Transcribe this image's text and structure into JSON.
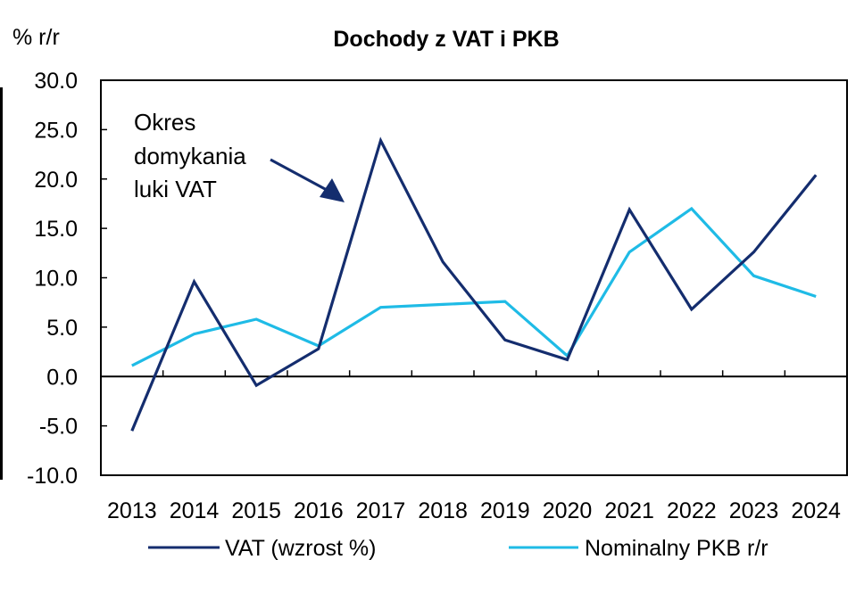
{
  "chart_data": {
    "type": "line",
    "title": "Dochody z VAT i  PKB",
    "ylabel": "% r/r",
    "xlabel": "",
    "ylim": [
      -10,
      30
    ],
    "ytick_step": 5,
    "yticks": [
      "30.0",
      "25.0",
      "20.0",
      "15.0",
      "10.0",
      "5.0",
      "0.0",
      "-5.0",
      "-10.0"
    ],
    "categories": [
      "2013",
      "2014",
      "2015",
      "2016",
      "2017",
      "2018",
      "2019",
      "2020",
      "2021",
      "2022",
      "2023",
      "2024"
    ],
    "series": [
      {
        "name": "VAT (wzrost %)",
        "color": "#142d6e",
        "values": [
          -5.5,
          9.6,
          -0.9,
          2.8,
          23.9,
          11.6,
          3.7,
          1.7,
          16.9,
          6.8,
          12.6,
          20.4
        ]
      },
      {
        "name": "Nominalny PKB r/r",
        "color": "#1fbbe6",
        "values": [
          1.1,
          4.3,
          5.8,
          3.1,
          7.0,
          7.3,
          7.6,
          2.1,
          12.6,
          17.0,
          10.2,
          8.1
        ]
      }
    ],
    "annotation": {
      "lines": [
        "Okres",
        "domykania",
        "luki VAT"
      ],
      "arrow_color": "#142d6e"
    },
    "legend_position": "bottom",
    "grid": false
  }
}
